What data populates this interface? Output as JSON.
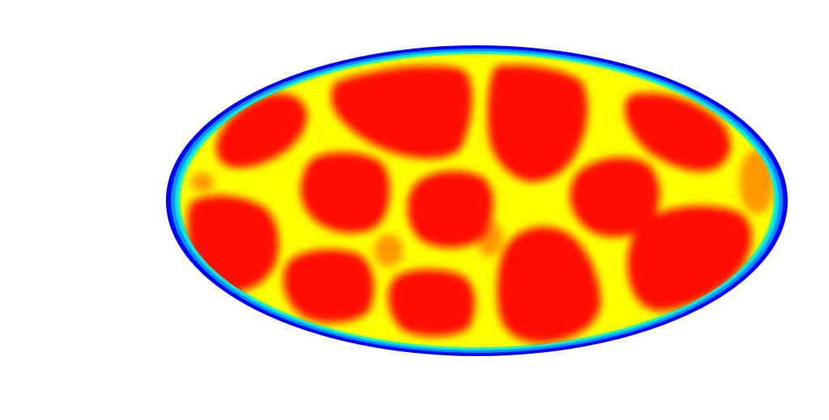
{
  "figure": {
    "kind": "simulation-field",
    "shape": "ellipse",
    "colormap": "jet",
    "colors": {
      "background": "#ffffff",
      "outer_ring": [
        "#0000ff",
        "#0090ff",
        "#00e0ff",
        "#40ff80"
      ],
      "channel": "#ffff00",
      "channel_inner": "#fff000",
      "junction": "#ff9900",
      "cell": "#ff1000"
    },
    "cell_count": 12
  }
}
